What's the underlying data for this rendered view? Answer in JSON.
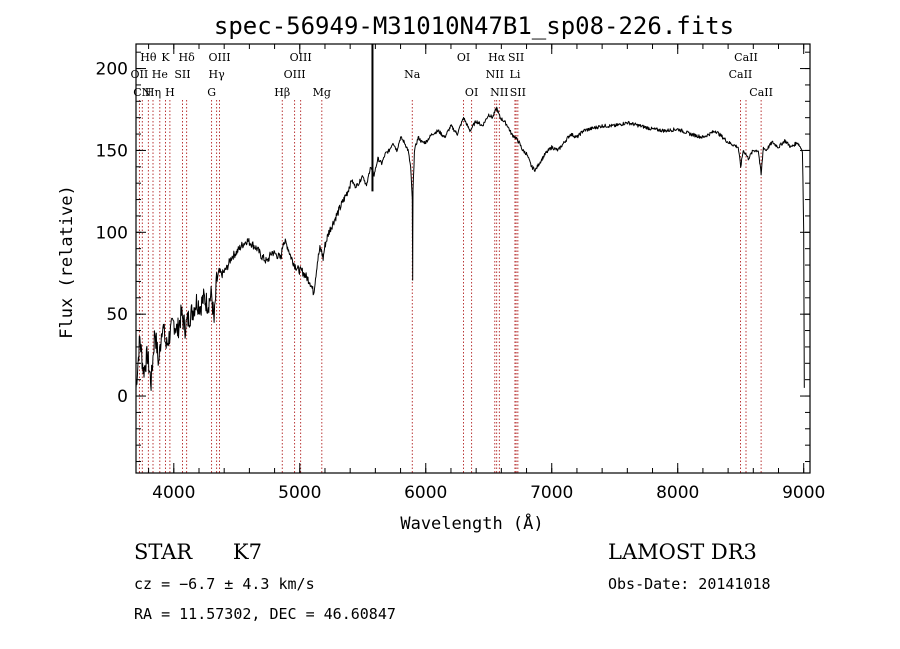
{
  "chart_data": {
    "type": "line",
    "title": "spec-56949-M31010N47B1_sp08-226.fits",
    "xlabel": "Wavelength (Å)",
    "ylabel": "Flux (relative)",
    "xlim": [
      3700,
      9050
    ],
    "ylim": [
      -47,
      215
    ],
    "xticks": [
      4000,
      5000,
      6000,
      7000,
      8000,
      9000
    ],
    "yticks": [
      0,
      50,
      100,
      150,
      200
    ],
    "series": [
      {
        "name": "flux",
        "x": [
          3700,
          3730,
          3760,
          3790,
          3820,
          3850,
          3880,
          3910,
          3940,
          3970,
          4000,
          4030,
          4060,
          4090,
          4120,
          4150,
          4180,
          4210,
          4240,
          4270,
          4300,
          4320,
          4340,
          4360,
          4380,
          4420,
          4460,
          4500,
          4540,
          4580,
          4620,
          4660,
          4700,
          4740,
          4780,
          4820,
          4850,
          4870,
          4900,
          4930,
          4960,
          4990,
          5020,
          5050,
          5080,
          5110,
          5140,
          5160,
          5175,
          5185,
          5200,
          5230,
          5260,
          5290,
          5320,
          5350,
          5380,
          5410,
          5440,
          5470,
          5500,
          5530,
          5560,
          5590,
          5620,
          5650,
          5680,
          5710,
          5740,
          5770,
          5800,
          5830,
          5860,
          5880,
          5893,
          5896,
          5899,
          5910,
          5940,
          5970,
          6000,
          6050,
          6100,
          6150,
          6200,
          6250,
          6300,
          6350,
          6400,
          6450,
          6500,
          6530,
          6563,
          6590,
          6620,
          6650,
          6680,
          6710,
          6740,
          6770,
          6800,
          6840,
          6870,
          6900,
          6950,
          7000,
          7050,
          7100,
          7150,
          7200,
          7250,
          7300,
          7400,
          7500,
          7600,
          7700,
          7800,
          7900,
          8000,
          8100,
          8200,
          8300,
          8400,
          8480,
          8500,
          8520,
          8540,
          8560,
          8600,
          8640,
          8662,
          8680,
          8700,
          8750,
          8800,
          8850,
          8900,
          8950,
          8990,
          9000,
          9005
        ],
        "values": [
          5,
          35,
          15,
          25,
          8,
          40,
          20,
          45,
          30,
          38,
          45,
          40,
          50,
          42,
          48,
          52,
          58,
          55,
          60,
          56,
          62,
          45,
          70,
          76,
          74,
          78,
          85,
          88,
          92,
          95,
          93,
          90,
          85,
          82,
          88,
          86,
          84,
          95,
          92,
          85,
          80,
          77,
          76,
          73,
          70,
          63,
          82,
          90,
          88,
          84,
          92,
          100,
          105,
          110,
          115,
          120,
          125,
          132,
          128,
          130,
          135,
          128,
          140,
          135,
          145,
          142,
          148,
          150,
          155,
          150,
          158,
          155,
          150,
          140,
          120,
          70,
          125,
          150,
          158,
          155,
          155,
          160,
          162,
          158,
          165,
          160,
          170,
          162,
          168,
          165,
          172,
          170,
          176,
          170,
          168,
          165,
          160,
          158,
          155,
          150,
          148,
          140,
          138,
          142,
          148,
          152,
          150,
          155,
          160,
          158,
          162,
          163,
          165,
          165,
          167,
          165,
          163,
          162,
          163,
          160,
          158,
          162,
          155,
          152,
          140,
          150,
          148,
          145,
          150,
          150,
          135,
          152,
          150,
          155,
          152,
          156,
          152,
          155,
          150,
          100,
          5
        ]
      }
    ],
    "spectral_lines": [
      {
        "label": "Hθ",
        "x": 3798,
        "row": 1
      },
      {
        "label": "OII",
        "x": 3727,
        "row": 2
      },
      {
        "label": "CN",
        "x": 3750,
        "row": 3
      },
      {
        "label": "K",
        "x": 3934,
        "row": 1
      },
      {
        "label": "He",
        "x": 3889,
        "row": 2
      },
      {
        "label": "Hη",
        "x": 3835,
        "row": 3
      },
      {
        "label": "Hδ",
        "x": 4102,
        "row": 1
      },
      {
        "label": "SII",
        "x": 4069,
        "row": 2
      },
      {
        "label": "H",
        "x": 3969,
        "row": 3
      },
      {
        "label": "OIII",
        "x": 4363,
        "row": 1
      },
      {
        "label": "Hγ",
        "x": 4340,
        "row": 2
      },
      {
        "label": "G",
        "x": 4300,
        "row": 3
      },
      {
        "label": "OIII",
        "x": 5007,
        "row": 1
      },
      {
        "label": "OIII",
        "x": 4959,
        "row": 2
      },
      {
        "label": "Hβ",
        "x": 4861,
        "row": 3
      },
      {
        "label": "Mg",
        "x": 5175,
        "row": 3
      },
      {
        "label": "Na",
        "x": 5893,
        "row": 2
      },
      {
        "label": "OI",
        "x": 6300,
        "row": 1
      },
      {
        "label": "OI",
        "x": 6364,
        "row": 3
      },
      {
        "label": "Hα",
        "x": 6563,
        "row": 1
      },
      {
        "label": "NII",
        "x": 6548,
        "row": 2
      },
      {
        "label": "NII",
        "x": 6584,
        "row": 3
      },
      {
        "label": "SII",
        "x": 6717,
        "row": 1
      },
      {
        "label": "Li",
        "x": 6708,
        "row": 2
      },
      {
        "label": "SII",
        "x": 6731,
        "row": 3
      },
      {
        "label": "CaII",
        "x": 8542,
        "row": 1
      },
      {
        "label": "CaII",
        "x": 8498,
        "row": 2
      },
      {
        "label": "CaII",
        "x": 8662,
        "row": 3
      }
    ],
    "sky_line_x": 5577,
    "line_color": "#b22222"
  },
  "info": {
    "object_class": "STAR",
    "subclass": "K7",
    "survey": "LAMOST DR3",
    "redshift": "cz = −6.7 ± 4.3 km/s",
    "obs_date": "Obs-Date: 20141018",
    "coords": "RA =  11.57302, DEC =  46.60847"
  }
}
